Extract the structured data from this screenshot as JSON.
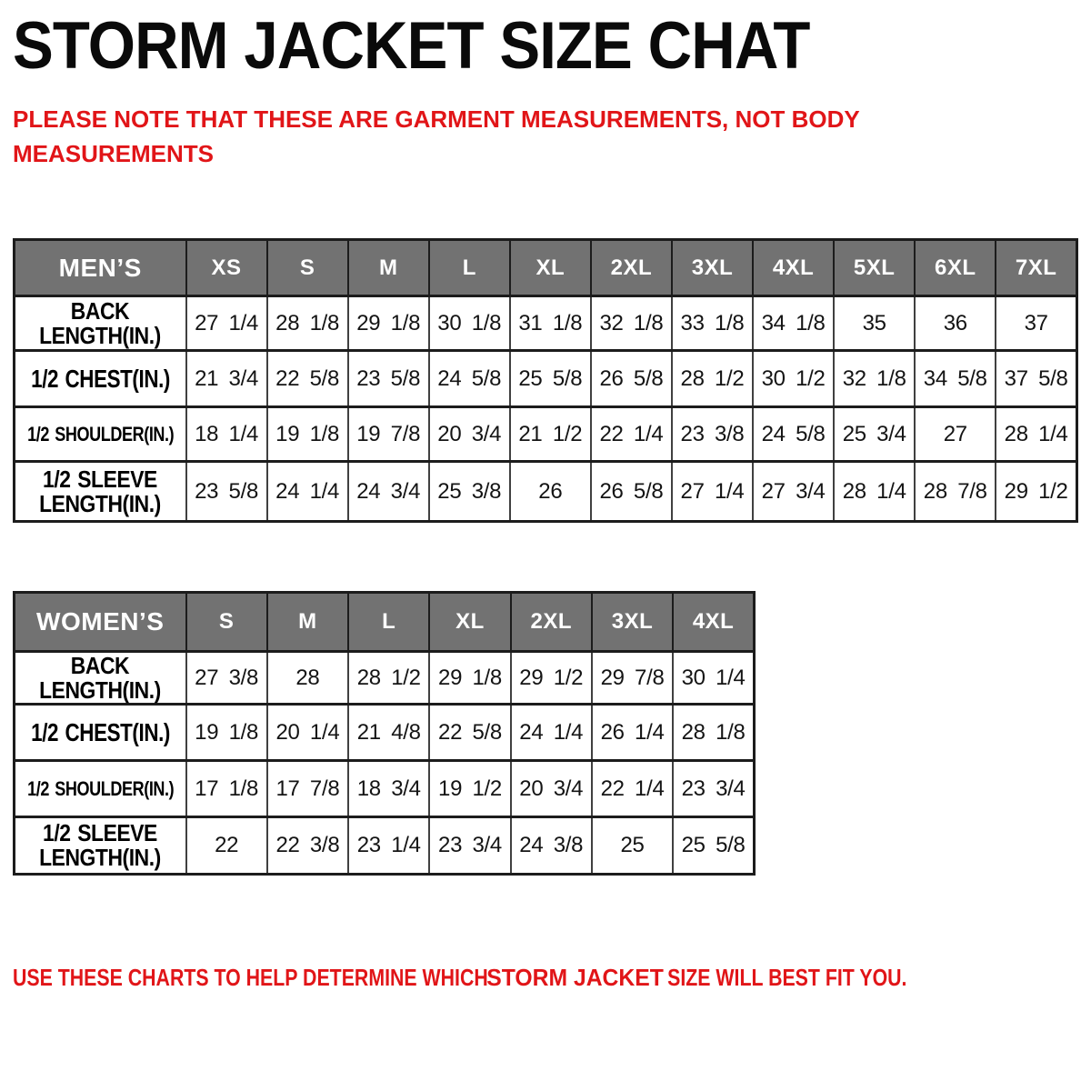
{
  "title": "STORM JACKET SIZE CHAT",
  "note": "PLEASE NOTE THAT THESE ARE GARMENT MEASUREMENTS, NOT BODY MEASUREMENTS",
  "footer": {
    "prefix": "USE THESE CHARTS TO HELP DETERMINE WHICH",
    "brand": "STORM JACKET",
    "suffix": "SIZE WILL BEST FIT YOU."
  },
  "colors": {
    "accent_red": "#e11518",
    "header_gray": "#727272",
    "text_black": "#0a0a0a"
  },
  "chart_data": [
    {
      "type": "table",
      "title": "MEN’S",
      "unit": "IN.",
      "columns": [
        "XS",
        "S",
        "M",
        "L",
        "XL",
        "2XL",
        "3XL",
        "4XL",
        "5XL",
        "6XL",
        "7XL"
      ],
      "rows": [
        {
          "label": "BACK LENGTH(IN.)",
          "values": [
            "27 1/4",
            "28 1/8",
            "29 1/8",
            "30 1/8",
            "31 1/8",
            "32 1/8",
            "33 1/8",
            "34 1/8",
            "35",
            "36",
            "37"
          ]
        },
        {
          "label": "1/2 CHEST(IN.)",
          "values": [
            "21 3/4",
            "22 5/8",
            "23 5/8",
            "24 5/8",
            "25 5/8",
            "26 5/8",
            "28 1/2",
            "30 1/2",
            "32 1/8",
            "34 5/8",
            "37 5/8"
          ]
        },
        {
          "label": "1/2 SHOULDER(IN.)",
          "values": [
            "18 1/4",
            "19 1/8",
            "19 7/8",
            "20 3/4",
            "21 1/2",
            "22 1/4",
            "23 3/8",
            "24 5/8",
            "25 3/4",
            "27",
            "28 1/4"
          ]
        },
        {
          "label": "1/2 SLEEVE LENGTH(IN.)",
          "values": [
            "23 5/8",
            "24 1/4",
            "24 3/4",
            "25 3/8",
            "26",
            "26 5/8",
            "27 1/4",
            "27 3/4",
            "28 1/4",
            "28 7/8",
            "29 1/2"
          ]
        }
      ]
    },
    {
      "type": "table",
      "title": "WOMEN’S",
      "unit": "IN.",
      "columns": [
        "S",
        "M",
        "L",
        "XL",
        "2XL",
        "3XL",
        "4XL"
      ],
      "rows": [
        {
          "label": "BACK LENGTH(IN.)",
          "values": [
            "27 3/8",
            "28",
            "28 1/2",
            "29 1/8",
            "29 1/2",
            "29 7/8",
            "30 1/4"
          ]
        },
        {
          "label": "1/2 CHEST(IN.)",
          "values": [
            "19 1/8",
            "20 1/4",
            "21 4/8",
            "22 5/8",
            "24 1/4",
            "26 1/4",
            "28 1/8"
          ]
        },
        {
          "label": "1/2 SHOULDER(IN.)",
          "values": [
            "17 1/8",
            "17 7/8",
            "18 3/4",
            "19 1/2",
            "20 3/4",
            "22 1/4",
            "23 3/4"
          ]
        },
        {
          "label": "1/2 SLEEVE LENGTH(IN.)",
          "values": [
            "22",
            "22 3/8",
            "23 1/4",
            "23 3/4",
            "24 3/8",
            "25",
            "25 5/8"
          ]
        }
      ]
    }
  ],
  "layout": {
    "men_row_heights": [
      62,
      60,
      62,
      60,
      66
    ],
    "women_row_heights": [
      65,
      58,
      62,
      62,
      63
    ],
    "label_col_width": 189
  }
}
